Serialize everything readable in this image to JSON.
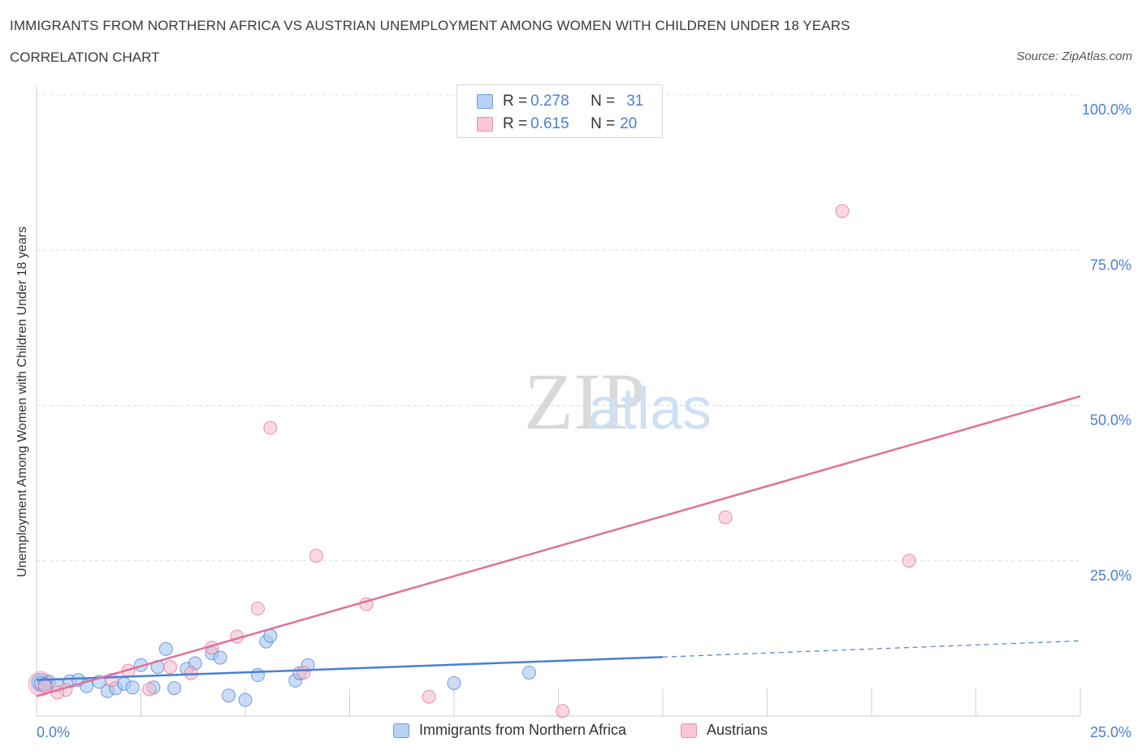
{
  "header": {
    "title": "IMMIGRANTS FROM NORTHERN AFRICA VS AUSTRIAN UNEMPLOYMENT AMONG WOMEN WITH CHILDREN UNDER 18 YEARS",
    "subtitle": "CORRELATION CHART",
    "source": "Source: ZipAtlas.com"
  },
  "watermark": {
    "zip": "ZIP",
    "atlas": "atlas"
  },
  "legend": {
    "series1": {
      "r_label": "R = ",
      "r_value": "0.278",
      "n_label": "N = ",
      "n_value": "31"
    },
    "series2": {
      "r_label": "R = ",
      "r_value": "0.615",
      "n_label": "N = ",
      "n_value": "20"
    }
  },
  "chart_data": {
    "type": "scatter",
    "title": "IMMIGRANTS FROM NORTHERN AFRICA VS AUSTRIAN UNEMPLOYMENT AMONG WOMEN WITH CHILDREN UNDER 18 YEARS",
    "xlabel": "",
    "ylabel": "Unemployment Among Women with Children Under 18 years",
    "xlim": [
      0,
      25
    ],
    "ylim": [
      0,
      100
    ],
    "x_tick_labels": [
      "0.0%",
      "25.0%"
    ],
    "y_tick_labels": [
      "25.0%",
      "50.0%",
      "75.0%",
      "100.0%"
    ],
    "y_ticks": [
      25,
      50,
      75,
      100
    ],
    "grid": true,
    "legend_position": "top-center",
    "colors": {
      "series1": "#4a7fd4",
      "series2": "#e0709a",
      "series1_fill": "#a9c6f0",
      "series2_fill": "#f6b8cb"
    },
    "series": [
      {
        "name": "Immigrants from Northern Africa",
        "R": 0.278,
        "N": 31,
        "points": [
          [
            0.1,
            5.3
          ],
          [
            0.3,
            5.5
          ],
          [
            0.5,
            5.0
          ],
          [
            0.8,
            5.6
          ],
          [
            1.0,
            5.8
          ],
          [
            1.2,
            4.8
          ],
          [
            1.5,
            5.5
          ],
          [
            1.7,
            4.0
          ],
          [
            1.9,
            4.5
          ],
          [
            2.1,
            5.2
          ],
          [
            2.3,
            4.6
          ],
          [
            2.5,
            8.2
          ],
          [
            2.8,
            4.6
          ],
          [
            2.9,
            7.9
          ],
          [
            3.1,
            10.8
          ],
          [
            3.3,
            4.5
          ],
          [
            3.6,
            7.6
          ],
          [
            3.8,
            8.5
          ],
          [
            4.2,
            10.1
          ],
          [
            4.4,
            9.4
          ],
          [
            4.6,
            3.3
          ],
          [
            5.0,
            2.6
          ],
          [
            5.3,
            6.6
          ],
          [
            5.5,
            12.0
          ],
          [
            5.6,
            12.9
          ],
          [
            6.2,
            5.7
          ],
          [
            6.3,
            6.9
          ],
          [
            6.5,
            8.2
          ],
          [
            10.0,
            5.3
          ],
          [
            11.8,
            7.0
          ],
          [
            0.2,
            5.1
          ]
        ],
        "trend": {
          "x0": 0,
          "y0": 5.8,
          "x1": 15,
          "y1": 9.5,
          "dashed_to_x": 25,
          "dashed_to_y": 12.1
        }
      },
      {
        "name": "Austrians",
        "R": 0.615,
        "N": 20,
        "points": [
          [
            0.2,
            4.8
          ],
          [
            0.7,
            4.2
          ],
          [
            1.8,
            5.8
          ],
          [
            2.2,
            7.3
          ],
          [
            2.7,
            4.3
          ],
          [
            3.2,
            7.9
          ],
          [
            3.7,
            6.9
          ],
          [
            4.2,
            11.0
          ],
          [
            4.8,
            12.8
          ],
          [
            5.3,
            17.3
          ],
          [
            5.6,
            46.4
          ],
          [
            6.4,
            7.0
          ],
          [
            6.7,
            25.8
          ],
          [
            7.9,
            18.0
          ],
          [
            9.4,
            3.1
          ],
          [
            12.6,
            0.8
          ],
          [
            16.5,
            32.0
          ],
          [
            19.3,
            81.3
          ],
          [
            20.9,
            25.0
          ],
          [
            0.5,
            3.8
          ]
        ],
        "trend": {
          "x0": 0,
          "y0": 3.2,
          "x1": 25,
          "y1": 51.5
        }
      }
    ]
  }
}
